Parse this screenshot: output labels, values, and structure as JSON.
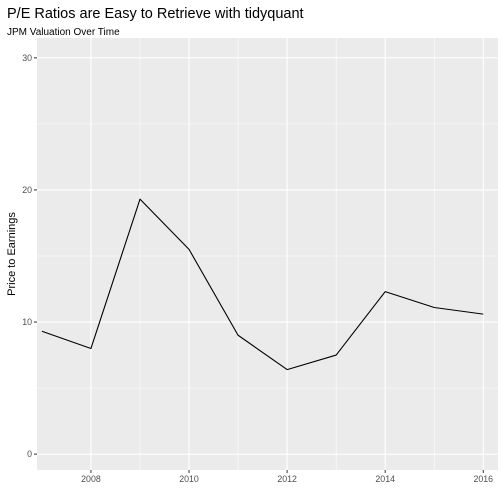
{
  "chart_data": {
    "type": "line",
    "title": "P/E Ratios are Easy to Retrieve with tidyquant",
    "subtitle": "JPM Valuation Over Time",
    "xlabel": "",
    "ylabel": "Price to Earnings",
    "x": [
      2007,
      2008,
      2009,
      2010,
      2011,
      2012,
      2013,
      2014,
      2015,
      2016
    ],
    "series": [
      {
        "values": [
          9.3,
          8.0,
          19.3,
          15.5,
          9.0,
          6.4,
          7.5,
          12.3,
          11.1,
          10.6
        ],
        "color": "#000000"
      }
    ],
    "xlim": [
      2006.9,
      2016.3
    ],
    "ylim": [
      -1.2,
      31.5
    ],
    "x_ticks": [
      2008,
      2010,
      2012,
      2014,
      2016
    ],
    "y_ticks": [
      0,
      10,
      20,
      30
    ],
    "grid": true,
    "legend": "none",
    "colors": {
      "panel_background": "#ebebeb",
      "grid_major": "#ffffff",
      "line": "#000000",
      "tick_text": "#4d4d4d"
    }
  }
}
